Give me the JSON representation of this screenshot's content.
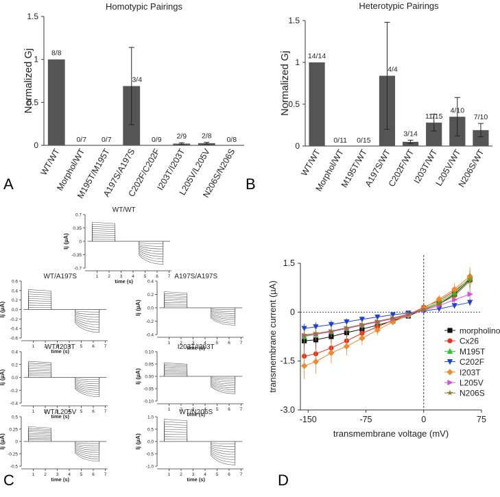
{
  "panels": {
    "a": "A",
    "b": "B",
    "c": "C",
    "d": "D"
  },
  "chart_data": [
    {
      "id": "homotypic",
      "type": "bar",
      "title": "Homotypic Pairings",
      "ylabel": "Normalized Gj",
      "ylim": [
        0,
        1.5
      ],
      "yticks": [
        "0",
        "0.5",
        "1",
        "1.5"
      ],
      "categories": [
        "WT/WT",
        "Morphol/WT",
        "M195T/M195T",
        "A197S/A197S",
        "C202F/C202F",
        "I203T/I203T",
        "L205V/L205V",
        "N206S/N206S"
      ],
      "values": [
        1.0,
        0,
        0,
        0.69,
        0,
        0.02,
        0.025,
        0
      ],
      "errors": [
        0,
        0,
        0,
        0.45,
        0,
        0.01,
        0.01,
        0
      ],
      "labels": [
        "8/8",
        "0/7",
        "0/7",
        "3/4",
        "0/9",
        "2/9",
        "2/8",
        "0/8"
      ],
      "bar_color": "#555555"
    },
    {
      "id": "heterotypic",
      "type": "bar",
      "title": "Heterotypic Pairings",
      "ylabel": "Normalized Gj",
      "ylim": [
        0,
        1.5
      ],
      "yticks": [
        "0",
        "0.5",
        "1",
        "1.5"
      ],
      "categories": [
        "WT/WT",
        "Morphol/WT",
        "M195T/WT",
        "A197S/WT",
        "C202F/WT",
        "I203T/WT",
        "L205V/WT",
        "N206S/WT"
      ],
      "values": [
        1.0,
        0,
        0,
        0.84,
        0.05,
        0.28,
        0.35,
        0.19
      ],
      "errors": [
        0,
        0,
        0,
        0.64,
        0.02,
        0.1,
        0.23,
        0.08
      ],
      "labels": [
        "14/14",
        "0/11",
        "0/15",
        "4/4",
        "3/14",
        "11/15",
        "4/10",
        "7/10"
      ],
      "bar_color": "#555555"
    },
    {
      "id": "traces",
      "type": "line",
      "xlabel": "time (s)",
      "ylabel": "Ij (µA)",
      "xticks": [
        "1",
        "2",
        "3",
        "4",
        "5",
        "6",
        "7"
      ],
      "plots": [
        {
          "id": "p1",
          "title": "WT/WT",
          "yticks": [
            "0.7",
            "0.35",
            "0",
            "-0.35",
            "-0.7"
          ],
          "ymax": 0.7,
          "pos": 0.5,
          "neg": -0.6
        },
        {
          "id": "p2",
          "title": "WT/A197S",
          "yticks": [
            "0.6",
            "0.4",
            "0.2",
            "0.0",
            "-0.2",
            "-0.4",
            "-0.6"
          ],
          "ymax": 0.6,
          "pos": 0.42,
          "neg": -0.48
        },
        {
          "id": "p3",
          "title": "A197S/A197S",
          "yticks": [
            "0.4",
            "0.2",
            "0.0",
            "-0.2",
            "-0.4"
          ],
          "ymax": 0.4,
          "pos": 0.24,
          "neg": -0.26
        },
        {
          "id": "p4",
          "title": "WT/I203T",
          "yticks": [
            "0.4",
            "0.2",
            "0.0",
            "-0.2",
            "-0.4"
          ],
          "ymax": 0.4,
          "pos": 0.25,
          "neg": -0.3
        },
        {
          "id": "p5",
          "title": "I203T/I203T",
          "yticks": [
            "0.10",
            "0.05",
            "0.00",
            "-0.05",
            "-0.10"
          ],
          "ymax": 0.1,
          "pos": 0.055,
          "neg": -0.07
        },
        {
          "id": "p6",
          "title": "WT/L205V",
          "yticks": [
            "0.5",
            "0.25",
            "0",
            "-0.25",
            "-0.5"
          ],
          "ymax": 0.5,
          "pos": 0.3,
          "neg": -0.4
        },
        {
          "id": "p7",
          "title": "WT/N206S",
          "yticks": [
            "1.0",
            "0.5",
            "0.0",
            "-0.5",
            "-1.0"
          ],
          "ymax": 1.0,
          "pos": 0.9,
          "neg": -0.95
        }
      ]
    },
    {
      "id": "iv",
      "type": "line",
      "xlabel": "transmembrane voltage (mV)",
      "ylabel": "transmembrane current (µA)",
      "xlim": [
        -160,
        75
      ],
      "ylim": [
        -3.0,
        1.5
      ],
      "xticks": [
        "-150",
        "-75",
        "0",
        "75"
      ],
      "yticks": [
        "1.5",
        "0",
        "-1.5",
        "-3.0"
      ],
      "x": [
        -155,
        -140,
        -120,
        -100,
        -80,
        -60,
        -40,
        -20,
        0,
        20,
        40,
        60
      ],
      "series": [
        {
          "name": "morpholino",
          "color": "#111111",
          "marker": "square",
          "y": [
            -0.88,
            -0.85,
            -0.75,
            -0.63,
            -0.52,
            -0.4,
            -0.27,
            -0.12,
            0.08,
            0.25,
            0.55,
            1.0
          ]
        },
        {
          "name": "Cx26",
          "color": "#e8321e",
          "marker": "circle",
          "y": [
            -1.35,
            -1.28,
            -1.1,
            -0.88,
            -0.65,
            -0.45,
            -0.25,
            -0.08,
            0.15,
            0.35,
            0.65,
            1.02
          ]
        },
        {
          "name": "M195T",
          "color": "#22cc22",
          "marker": "triangle-up",
          "y": [
            -0.75,
            -0.68,
            -0.6,
            -0.5,
            -0.4,
            -0.3,
            -0.2,
            -0.08,
            0.1,
            0.3,
            0.6,
            1.05
          ]
        },
        {
          "name": "C202F",
          "color": "#1e3fd8",
          "marker": "triangle-down",
          "y": [
            -0.5,
            -0.45,
            -0.38,
            -0.3,
            -0.22,
            -0.15,
            -0.08,
            -0.03,
            0.04,
            0.1,
            0.2,
            0.3
          ]
        },
        {
          "name": "I203T",
          "color": "#f08a2a",
          "marker": "diamond",
          "y": [
            -1.65,
            -1.52,
            -1.25,
            -1.05,
            -0.8,
            -0.55,
            -0.3,
            -0.1,
            0.12,
            0.4,
            0.7,
            1.1
          ]
        },
        {
          "name": "L205V",
          "color": "#e04cd8",
          "marker": "triangle-right",
          "y": [
            -0.72,
            -0.68,
            -0.6,
            -0.5,
            -0.4,
            -0.3,
            -0.2,
            -0.08,
            0.06,
            0.2,
            0.38,
            0.55
          ]
        },
        {
          "name": "N206S",
          "color": "#8a7a20",
          "marker": "star",
          "y": [
            -0.7,
            -0.65,
            -0.58,
            -0.48,
            -0.38,
            -0.28,
            -0.18,
            -0.06,
            0.08,
            0.25,
            0.5,
            0.95
          ]
        }
      ]
    }
  ]
}
